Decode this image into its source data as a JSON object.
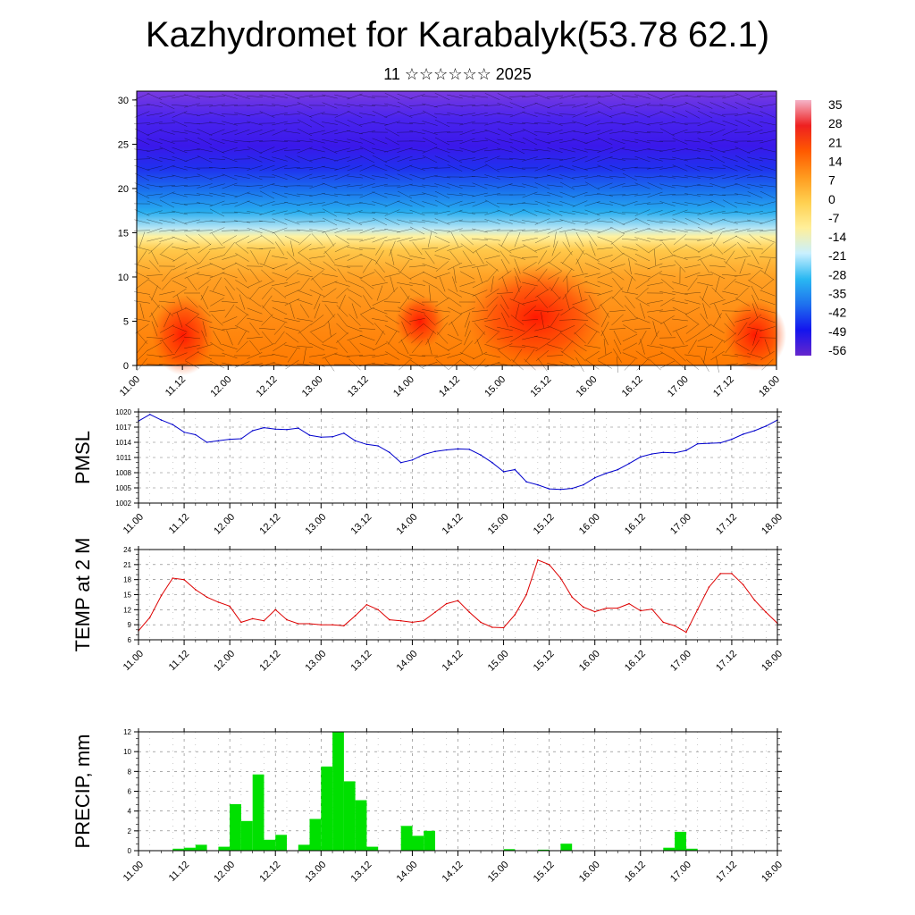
{
  "title": "Kazhydromet for Karabalyk(53.78 62.1)",
  "subtitle": "11 ☆☆☆☆☆☆ 2025",
  "time_ticks": [
    "11.00",
    "11.12",
    "12.00",
    "12.12",
    "13.00",
    "13.12",
    "14.00",
    "14.12",
    "15.00",
    "15.12",
    "16.00",
    "16.12",
    "17.00",
    "17.12",
    "18.00"
  ],
  "colors": {
    "pmsl": "#0000cc",
    "temp": "#dd0000",
    "precip": "#00e000"
  },
  "chart_data": [
    {
      "type": "heatmap",
      "name": "upper-air-temperature-and-wind",
      "ylim": [
        0,
        31
      ],
      "yticks": [
        0,
        5,
        10,
        15,
        20,
        25,
        30
      ],
      "xlim": [
        0,
        168
      ],
      "colorbar_labels": [
        "35",
        "28",
        "21",
        "14",
        "7",
        "0",
        "-7",
        "-14",
        "-21",
        "-28",
        "-35",
        "-42",
        "-49",
        "-56"
      ],
      "colorbar_stops": [
        "#f4b4c8",
        "#ee2020",
        "#ff5a00",
        "#ff9a1e",
        "#ffd050",
        "#ffef9a",
        "#c9f0ff",
        "#2ab8f2",
        "#1e70ee",
        "#1414ee",
        "#6626cc"
      ],
      "overlay": "wind barbs"
    },
    {
      "type": "line",
      "ylabel": "PMSL",
      "ylim": [
        1002,
        1020
      ],
      "yticks": [
        1002,
        1005,
        1008,
        1011,
        1014,
        1017,
        1020
      ],
      "x": [
        0,
        3,
        6,
        9,
        12,
        15,
        18,
        21,
        24,
        27,
        30,
        33,
        36,
        39,
        42,
        45,
        48,
        51,
        54,
        57,
        60,
        63,
        66,
        69,
        72,
        75,
        78,
        81,
        84,
        87,
        90,
        93,
        96,
        99,
        102,
        105,
        108,
        111,
        114,
        117,
        120,
        123,
        126,
        129,
        132,
        135,
        138,
        141,
        144,
        147,
        150,
        153,
        156,
        159,
        162,
        165,
        168
      ],
      "values": [
        1018.2,
        1019.5,
        1018.4,
        1017.5,
        1016.0,
        1015.5,
        1014.0,
        1014.3,
        1014.6,
        1014.7,
        1016.3,
        1016.9,
        1016.6,
        1016.5,
        1016.8,
        1015.4,
        1015.0,
        1015.1,
        1015.8,
        1014.3,
        1013.6,
        1013.3,
        1012.0,
        1010.0,
        1010.5,
        1011.6,
        1012.2,
        1012.5,
        1012.7,
        1012.6,
        1011.5,
        1010.0,
        1008.2,
        1008.6,
        1006.2,
        1005.6,
        1004.8,
        1004.7,
        1004.9,
        1005.6,
        1007.0,
        1007.9,
        1008.6,
        1009.8,
        1011.1,
        1011.7,
        1012.0,
        1011.9,
        1012.4,
        1013.7,
        1013.8,
        1013.9,
        1014.6,
        1015.6,
        1016.3,
        1017.2,
        1018.4
      ]
    },
    {
      "type": "line",
      "ylabel": "TEMP at 2 M",
      "ylim": [
        6,
        24
      ],
      "yticks": [
        6,
        9,
        12,
        15,
        18,
        21,
        24
      ],
      "x": [
        0,
        3,
        6,
        9,
        12,
        15,
        18,
        21,
        24,
        27,
        30,
        33,
        36,
        39,
        42,
        45,
        48,
        51,
        54,
        57,
        60,
        63,
        66,
        69,
        72,
        75,
        78,
        81,
        84,
        87,
        90,
        93,
        96,
        99,
        102,
        105,
        108,
        111,
        114,
        117,
        120,
        123,
        126,
        129,
        132,
        135,
        138,
        141,
        144,
        147,
        150,
        153,
        156,
        159,
        162,
        165,
        168
      ],
      "values": [
        7.8,
        10.5,
        14.8,
        18.3,
        18.0,
        16.0,
        14.5,
        13.5,
        12.7,
        9.5,
        10.2,
        9.8,
        12.0,
        10.0,
        9.2,
        9.2,
        9.0,
        9.0,
        8.8,
        10.8,
        13.0,
        12.0,
        10.0,
        9.8,
        9.5,
        9.8,
        11.5,
        13.2,
        13.8,
        11.5,
        9.5,
        8.5,
        8.4,
        11.0,
        15.0,
        21.9,
        21.0,
        18.3,
        14.5,
        12.5,
        11.6,
        12.3,
        12.3,
        13.2,
        11.8,
        12.1,
        9.5,
        8.8,
        7.5,
        12.0,
        16.5,
        19.2,
        19.2,
        17.0,
        13.9,
        11.5,
        9.3
      ]
    },
    {
      "type": "bar",
      "ylabel": "PRECIP, mm",
      "ylim": [
        0,
        12
      ],
      "yticks": [
        0,
        2,
        4,
        6,
        8,
        10,
        12
      ],
      "bar_width_hours": 3,
      "x": [
        9,
        12,
        15,
        21,
        24,
        27,
        30,
        33,
        36,
        42,
        45,
        48,
        51,
        54,
        57,
        60,
        69,
        72,
        75,
        96,
        105,
        111,
        138,
        141,
        144
      ],
      "values": [
        0.2,
        0.3,
        0.6,
        0.4,
        4.7,
        3.0,
        7.7,
        1.1,
        1.6,
        0.6,
        3.2,
        8.5,
        12.0,
        7.0,
        5.1,
        0.4,
        2.5,
        1.5,
        2.0,
        0.15,
        0.1,
        0.7,
        0.3,
        1.9,
        0.2
      ]
    }
  ]
}
